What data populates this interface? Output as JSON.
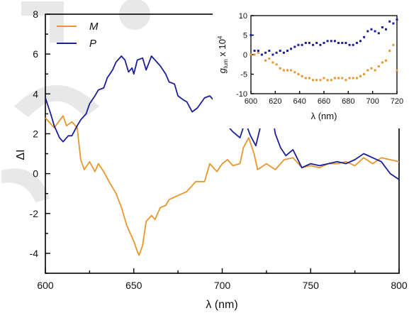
{
  "colors": {
    "M": "#e8962e",
    "P": "#1c1e9a"
  },
  "chart_data": [
    {
      "type": "line",
      "title": "",
      "xlabel": "λ (nm)",
      "ylabel": "ΔI",
      "xlim": [
        600,
        800
      ],
      "ylim": [
        -5,
        8
      ],
      "xticks": [
        600,
        650,
        700,
        750,
        800
      ],
      "yticks": [
        -4,
        -2,
        0,
        2,
        4,
        6,
        8
      ],
      "grid": false,
      "legend": "top-left",
      "series": [
        {
          "name": "M",
          "x": [
            600,
            605,
            610,
            612,
            615,
            618,
            620,
            622,
            625,
            628,
            630,
            633,
            636,
            640,
            643,
            646,
            648,
            650,
            652,
            653,
            655,
            657,
            660,
            662,
            665,
            668,
            670,
            675,
            680,
            685,
            690,
            693,
            697,
            700,
            703,
            706,
            710,
            712,
            715,
            718,
            720,
            725,
            730,
            735,
            740,
            745,
            750,
            755,
            760,
            765,
            770,
            775,
            780,
            785,
            790,
            795,
            800
          ],
          "y": [
            2.8,
            2.3,
            2.9,
            2.4,
            2.6,
            2.3,
            0.7,
            0.2,
            0.6,
            0.1,
            0.5,
            0.1,
            -0.4,
            -1.0,
            -1.7,
            -2.6,
            -3.0,
            -3.4,
            -3.9,
            -4.1,
            -3.6,
            -2.4,
            -2.1,
            -2.3,
            -1.7,
            -1.6,
            -1.3,
            -1.1,
            -0.9,
            -0.4,
            -0.4,
            0.5,
            0.1,
            0.5,
            0.7,
            0.4,
            0.5,
            1.3,
            1.8,
            1.0,
            0.2,
            0.5,
            0.2,
            0.7,
            0.8,
            0.3,
            0.4,
            0.3,
            0.5,
            0.5,
            0.6,
            0.4,
            0.8,
            0.5,
            0.8,
            0.7,
            0.6
          ]
        },
        {
          "name": "P",
          "x": [
            600,
            603,
            605,
            608,
            610,
            613,
            615,
            618,
            620,
            623,
            625,
            628,
            630,
            633,
            635,
            638,
            640,
            643,
            645,
            647,
            649,
            650,
            652,
            655,
            657,
            660,
            663,
            665,
            668,
            670,
            673,
            675,
            678,
            680,
            683,
            686,
            690,
            693,
            697,
            700,
            703,
            706,
            710,
            713,
            716,
            719,
            722,
            725,
            728,
            730,
            733,
            736,
            740,
            745,
            750,
            755,
            760,
            765,
            770,
            775,
            780,
            785,
            790,
            795,
            800
          ],
          "y": [
            3.8,
            3.0,
            2.4,
            1.8,
            1.6,
            1.9,
            1.9,
            2.4,
            2.7,
            3.0,
            3.5,
            3.9,
            4.2,
            4.3,
            4.8,
            5.2,
            5.6,
            5.9,
            5.7,
            5.1,
            5.3,
            5.0,
            5.7,
            5.8,
            5.2,
            5.9,
            5.6,
            5.4,
            5.0,
            4.6,
            4.5,
            3.9,
            3.7,
            3.6,
            3.1,
            3.3,
            3.8,
            3.9,
            3.5,
            2.8,
            2.4,
            2.1,
            1.8,
            2.6,
            1.9,
            1.4,
            2.5,
            2.9,
            3.1,
            2.0,
            1.3,
            0.9,
            1.2,
            0.3,
            0.5,
            0.4,
            0.5,
            0.6,
            0.5,
            0.7,
            1.0,
            0.8,
            0.6,
            0.0,
            -0.3
          ]
        }
      ]
    },
    {
      "type": "scatter",
      "title": "",
      "xlabel": "λ (nm)",
      "ylabel": "g_lum x 10^4",
      "ylabel_main": "g",
      "ylabel_sub": "lum",
      "ylabel_mid": " x 10",
      "ylabel_sup": "4",
      "xlim": [
        600,
        720
      ],
      "ylim": [
        -10,
        10
      ],
      "xticks": [
        600,
        620,
        640,
        660,
        680,
        700,
        720
      ],
      "yticks": [
        -10,
        -5,
        0,
        5,
        10
      ],
      "grid": false,
      "series": [
        {
          "name": "M",
          "x": [
            600,
            603,
            606,
            609,
            612,
            615,
            618,
            621,
            624,
            627,
            630,
            633,
            636,
            639,
            642,
            645,
            648,
            651,
            654,
            657,
            660,
            663,
            666,
            669,
            672,
            675,
            678,
            681,
            684,
            687,
            690,
            693,
            696,
            699,
            702,
            705,
            708,
            711,
            714,
            717,
            720
          ],
          "y": [
            0,
            0,
            0.5,
            0,
            -1.5,
            -1,
            -2,
            -2.5,
            -3.5,
            -4,
            -4,
            -4,
            -4.5,
            -5,
            -5.5,
            -6,
            -6,
            -6.5,
            -6.5,
            -6.5,
            -6,
            -6.5,
            -6.5,
            -6,
            -6,
            -6,
            -6.5,
            -6,
            -6,
            -6,
            -5.5,
            -5,
            -4,
            -3.5,
            -4,
            -3,
            -2,
            -1.5,
            1,
            2.5,
            -4
          ]
        },
        {
          "name": "P",
          "x": [
            600,
            603,
            606,
            609,
            612,
            615,
            618,
            621,
            624,
            627,
            630,
            633,
            636,
            639,
            642,
            645,
            648,
            651,
            654,
            657,
            660,
            663,
            666,
            669,
            672,
            675,
            678,
            681,
            684,
            687,
            690,
            693,
            696,
            699,
            702,
            705,
            708,
            711,
            714,
            717,
            720
          ],
          "y": [
            5,
            1,
            1,
            0,
            0.5,
            1,
            0,
            0.5,
            1,
            0.5,
            1,
            1.5,
            2,
            2.5,
            2.5,
            3,
            3,
            2.5,
            3,
            2.5,
            3,
            3.5,
            3.5,
            3.5,
            3,
            3,
            3,
            2.5,
            2.5,
            3,
            3.5,
            4.5,
            6,
            6.5,
            6,
            5.5,
            7,
            6.5,
            8.5,
            8,
            9
          ]
        }
      ]
    }
  ]
}
